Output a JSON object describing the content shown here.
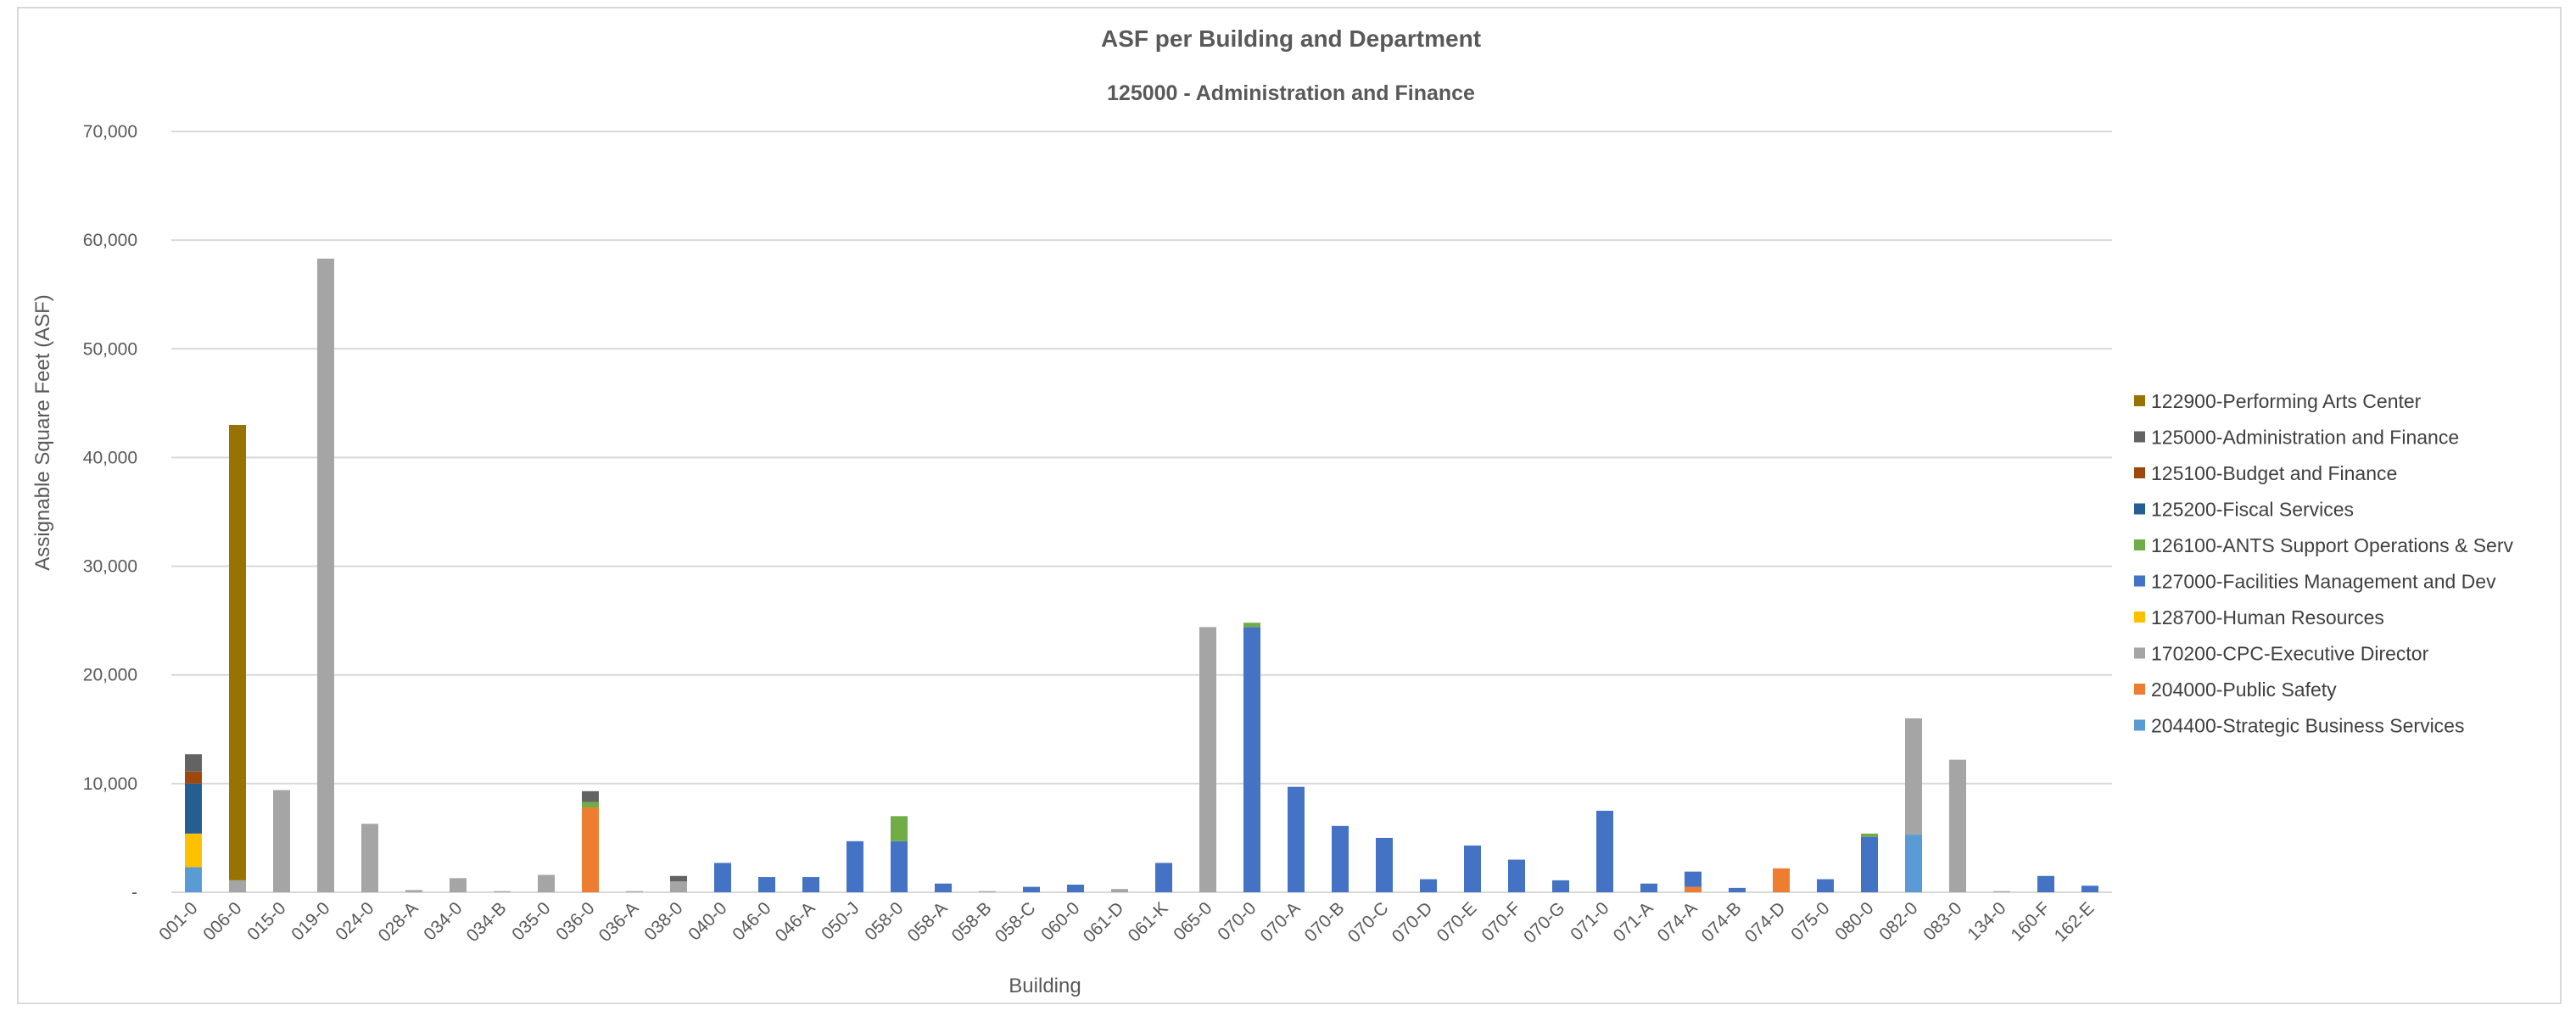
{
  "chart_data": {
    "type": "bar",
    "stacked": true,
    "title": "ASF per Building and Department",
    "subtitle": "125000 - Administration and Finance",
    "xlabel": "Building",
    "ylabel": "Assignable Square Feet (ASF)",
    "ylim": [
      0,
      70000
    ],
    "yticks": [
      0,
      10000,
      20000,
      30000,
      40000,
      50000,
      60000,
      70000
    ],
    "ytick_labels": [
      "-",
      "10,000",
      "20,000",
      "30,000",
      "40,000",
      "50,000",
      "60,000",
      "70,000"
    ],
    "grid": true,
    "legend_position": "right",
    "categories": [
      "001-0",
      "006-0",
      "015-0",
      "019-0",
      "024-0",
      "028-A",
      "034-0",
      "034-B",
      "035-0",
      "036-0",
      "036-A",
      "038-0",
      "040-0",
      "046-0",
      "046-A",
      "050-J",
      "058-0",
      "058-A",
      "058-B",
      "058-C",
      "060-0",
      "061-D",
      "061-K",
      "065-0",
      "070-0",
      "070-A",
      "070-B",
      "070-C",
      "070-D",
      "070-E",
      "070-F",
      "070-G",
      "071-0",
      "071-A",
      "074-A",
      "074-B",
      "074-D",
      "075-0",
      "080-0",
      "082-0",
      "083-0",
      "134-0",
      "160-F",
      "162-E"
    ],
    "series": [
      {
        "name": "204400-Strategic Business Services",
        "color": "#5b9bd5",
        "values": [
          2300,
          0,
          0,
          0,
          0,
          0,
          0,
          0,
          0,
          0,
          0,
          0,
          0,
          0,
          0,
          0,
          0,
          0,
          0,
          0,
          0,
          0,
          0,
          0,
          0,
          0,
          0,
          0,
          0,
          0,
          0,
          0,
          0,
          0,
          0,
          0,
          0,
          0,
          0,
          5300,
          0,
          0,
          0,
          0
        ]
      },
      {
        "name": "204000-Public Safety",
        "color": "#ed7d31",
        "values": [
          0,
          0,
          0,
          0,
          0,
          0,
          0,
          0,
          0,
          7800,
          0,
          0,
          0,
          0,
          0,
          0,
          0,
          0,
          0,
          0,
          0,
          0,
          0,
          0,
          0,
          0,
          0,
          0,
          0,
          0,
          0,
          0,
          0,
          0,
          500,
          0,
          2200,
          0,
          0,
          0,
          0,
          0,
          0,
          0
        ]
      },
      {
        "name": "170200-CPC-Executive Director",
        "color": "#a5a5a5",
        "values": [
          0,
          1100,
          9400,
          58300,
          6300,
          200,
          1300,
          100,
          1600,
          0,
          100,
          1000,
          0,
          0,
          0,
          0,
          0,
          0,
          100,
          0,
          0,
          300,
          0,
          24400,
          0,
          0,
          0,
          0,
          0,
          0,
          0,
          0,
          0,
          0,
          0,
          0,
          0,
          0,
          0,
          10700,
          12200,
          100,
          0,
          0
        ]
      },
      {
        "name": "128700-Human Resources",
        "color": "#ffc000",
        "values": [
          3100,
          0,
          0,
          0,
          0,
          0,
          0,
          0,
          0,
          0,
          0,
          0,
          0,
          0,
          0,
          0,
          0,
          0,
          0,
          0,
          0,
          0,
          0,
          0,
          0,
          0,
          0,
          0,
          0,
          0,
          0,
          0,
          0,
          0,
          0,
          0,
          0,
          0,
          0,
          0,
          0,
          0,
          0,
          0
        ]
      },
      {
        "name": "127000-Facilities Management and Dev",
        "color": "#4472c4",
        "values": [
          0,
          0,
          0,
          0,
          0,
          0,
          0,
          0,
          0,
          0,
          0,
          0,
          2700,
          1400,
          1400,
          4700,
          4700,
          800,
          0,
          500,
          700,
          0,
          2700,
          0,
          24400,
          9700,
          6100,
          5000,
          1200,
          4300,
          3000,
          1100,
          7500,
          800,
          1400,
          400,
          0,
          1200,
          5100,
          0,
          0,
          0,
          1500,
          600
        ]
      },
      {
        "name": "126100-ANTS Support Operations & Serv",
        "color": "#70ad47",
        "values": [
          0,
          0,
          0,
          0,
          0,
          0,
          0,
          0,
          0,
          500,
          0,
          0,
          0,
          0,
          0,
          0,
          2300,
          0,
          0,
          0,
          0,
          0,
          0,
          0,
          400,
          0,
          0,
          0,
          0,
          0,
          0,
          0,
          0,
          0,
          0,
          0,
          0,
          0,
          300,
          0,
          0,
          0,
          0,
          0
        ]
      },
      {
        "name": "125200-Fiscal Services",
        "color": "#255e91",
        "values": [
          4600,
          0,
          0,
          0,
          0,
          0,
          0,
          0,
          0,
          0,
          0,
          0,
          0,
          0,
          0,
          0,
          0,
          0,
          0,
          0,
          0,
          0,
          0,
          0,
          0,
          0,
          0,
          0,
          0,
          0,
          0,
          0,
          0,
          0,
          0,
          0,
          0,
          0,
          0,
          0,
          0,
          0,
          0,
          0
        ]
      },
      {
        "name": "125100-Budget and Finance",
        "color": "#9e480e",
        "values": [
          1100,
          0,
          0,
          0,
          0,
          0,
          0,
          0,
          0,
          0,
          0,
          0,
          0,
          0,
          0,
          0,
          0,
          0,
          0,
          0,
          0,
          0,
          0,
          0,
          0,
          0,
          0,
          0,
          0,
          0,
          0,
          0,
          0,
          0,
          0,
          0,
          0,
          0,
          0,
          0,
          0,
          0,
          0,
          0
        ]
      },
      {
        "name": "125000-Administration and Finance",
        "color": "#636363",
        "values": [
          1600,
          0,
          0,
          0,
          0,
          0,
          0,
          0,
          0,
          1000,
          0,
          500,
          0,
          0,
          0,
          0,
          0,
          0,
          0,
          0,
          0,
          0,
          0,
          0,
          0,
          0,
          0,
          0,
          0,
          0,
          0,
          0,
          0,
          0,
          0,
          0,
          0,
          0,
          0,
          0,
          0,
          0,
          0,
          0
        ]
      },
      {
        "name": "122900-Performing Arts Center",
        "color": "#997300",
        "values": [
          0,
          41900,
          0,
          0,
          0,
          0,
          0,
          0,
          0,
          0,
          0,
          0,
          0,
          0,
          0,
          0,
          0,
          0,
          0,
          0,
          0,
          0,
          0,
          0,
          0,
          0,
          0,
          0,
          0,
          0,
          0,
          0,
          0,
          0,
          0,
          0,
          0,
          0,
          0,
          0,
          0,
          0,
          0,
          0
        ]
      }
    ],
    "legend_order": [
      "122900-Performing Arts Center",
      "125000-Administration and Finance",
      "125100-Budget and Finance",
      "125200-Fiscal Services",
      "126100-ANTS Support Operations & Serv",
      "127000-Facilities Management and Dev",
      "128700-Human Resources",
      "170200-CPC-Executive Director",
      "204000-Public Safety",
      "204400-Strategic Business Services"
    ]
  }
}
